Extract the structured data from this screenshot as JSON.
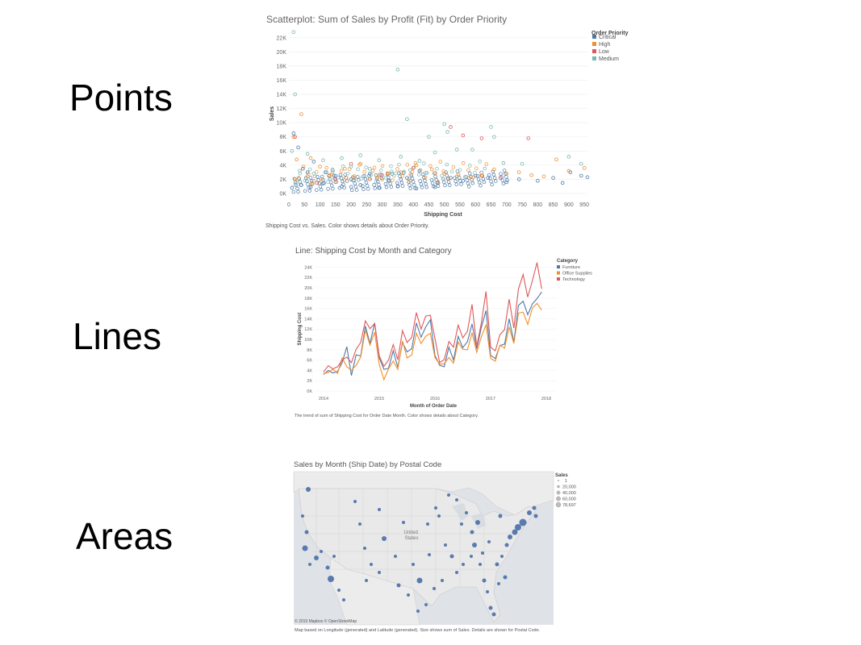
{
  "section_labels": {
    "points": "Points",
    "lines": "Lines",
    "areas": "Areas"
  },
  "colors": {
    "critical": "#4e79a7",
    "high": "#f28e2b",
    "low": "#e15759",
    "medium": "#76b7b2",
    "furniture": "#4e79a7",
    "office_supplies": "#f28e2b",
    "technology": "#e15759",
    "map_land": "#e9e9e9",
    "map_water": "#d8dde2",
    "map_points": "#4a6ea9"
  },
  "chart_data": [
    {
      "type": "scatter",
      "title": "Scatterplot: Sum of Sales by Profit (Fit) by Order Priority",
      "xlabel": "Shipping Cost",
      "ylabel": "Sales",
      "xlim": [
        0,
        960
      ],
      "ylim": [
        0,
        23000
      ],
      "x_ticks": [
        "0",
        "50",
        "100",
        "150",
        "200",
        "250",
        "300",
        "350",
        "400",
        "450",
        "500",
        "550",
        "600",
        "650",
        "700",
        "750",
        "800",
        "850",
        "900",
        "950"
      ],
      "y_ticks": [
        "0K",
        "2K",
        "4K",
        "6K",
        "8K",
        "10K",
        "12K",
        "14K",
        "16K",
        "18K",
        "20K",
        "22K"
      ],
      "legend": {
        "title": "Order Priority",
        "items": [
          "Critical",
          "High",
          "Low",
          "Medium"
        ],
        "position": "top-right"
      },
      "caption": "Shipping Cost vs. Sales.  Color shows details about Order Priority.",
      "series": [
        {
          "name": "Critical",
          "points": [
            [
              15,
              8500
            ],
            [
              30,
              6500
            ],
            [
              45,
              3500
            ],
            [
              60,
              3000
            ],
            [
              80,
              4500
            ],
            [
              120,
              3000
            ],
            [
              150,
              2500
            ],
            [
              200,
              2000
            ],
            [
              260,
              2800
            ],
            [
              320,
              1800
            ],
            [
              380,
              2200
            ],
            [
              420,
              3200
            ],
            [
              480,
              1500
            ],
            [
              520,
              2200
            ],
            [
              560,
              1800
            ],
            [
              600,
              2500
            ],
            [
              640,
              2200
            ],
            [
              700,
              1600
            ],
            [
              740,
              2000
            ],
            [
              800,
              1800
            ],
            [
              850,
              2200
            ],
            [
              880,
              1500
            ],
            [
              905,
              3000
            ],
            [
              940,
              2500
            ],
            [
              960,
              2300
            ],
            [
              10,
              800
            ],
            [
              40,
              1200
            ],
            [
              70,
              900
            ],
            [
              110,
              1400
            ],
            [
              170,
              1000
            ],
            [
              230,
              1200
            ],
            [
              290,
              800
            ],
            [
              350,
              1000
            ],
            [
              410,
              700
            ],
            [
              470,
              900
            ]
          ]
        },
        {
          "name": "High",
          "points": [
            [
              15,
              8000
            ],
            [
              40,
              11200
            ],
            [
              25,
              4800
            ],
            [
              70,
              5000
            ],
            [
              100,
              3800
            ],
            [
              140,
              3000
            ],
            [
              180,
              3500
            ],
            [
              230,
              4200
            ],
            [
              270,
              3200
            ],
            [
              320,
              2800
            ],
            [
              360,
              3000
            ],
            [
              410,
              4000
            ],
            [
              460,
              3400
            ],
            [
              500,
              2800
            ],
            [
              540,
              2400
            ],
            [
              580,
              2200
            ],
            [
              620,
              2500
            ],
            [
              660,
              3400
            ],
            [
              700,
              2800
            ],
            [
              740,
              3000
            ],
            [
              780,
              2600
            ],
            [
              820,
              2400
            ],
            [
              860,
              4800
            ],
            [
              900,
              3200
            ],
            [
              950,
              3600
            ],
            [
              20,
              2000
            ],
            [
              60,
              2400
            ],
            [
              130,
              2600
            ],
            [
              210,
              2200
            ],
            [
              300,
              2000
            ],
            [
              390,
              1800
            ],
            [
              480,
              1600
            ]
          ]
        },
        {
          "name": "Low",
          "points": [
            [
              20,
              8000
            ],
            [
              520,
              9400
            ],
            [
              560,
              8200
            ],
            [
              620,
              7800
            ],
            [
              770,
              7800
            ],
            [
              200,
              4200
            ],
            [
              400,
              3600
            ],
            [
              300,
              2600
            ],
            [
              150,
              2000
            ],
            [
              90,
              1500
            ],
            [
              680,
              2200
            ]
          ]
        },
        {
          "name": "Medium",
          "points": [
            [
              15,
              22800
            ],
            [
              20,
              14000
            ],
            [
              350,
              17500
            ],
            [
              380,
              10500
            ],
            [
              500,
              9800
            ],
            [
              510,
              8700
            ],
            [
              650,
              9400
            ],
            [
              660,
              8000
            ],
            [
              450,
              8000
            ],
            [
              10,
              6000
            ],
            [
              60,
              5600
            ],
            [
              110,
              4700
            ],
            [
              170,
              5000
            ],
            [
              230,
              5400
            ],
            [
              290,
              4700
            ],
            [
              360,
              5200
            ],
            [
              420,
              4600
            ],
            [
              470,
              5800
            ],
            [
              540,
              6200
            ],
            [
              590,
              6200
            ],
            [
              690,
              4300
            ],
            [
              750,
              4200
            ],
            [
              900,
              5200
            ],
            [
              940,
              4200
            ],
            [
              35,
              3200
            ],
            [
              80,
              2800
            ],
            [
              140,
              3400
            ],
            [
              200,
              3800
            ],
            [
              260,
              3500
            ],
            [
              330,
              3100
            ],
            [
              390,
              3300
            ],
            [
              440,
              2900
            ]
          ]
        }
      ]
    },
    {
      "type": "line",
      "title": "Line: Shipping Cost by Month and Category",
      "xlabel": "Month of Order Date",
      "ylabel": "Shipping Cost",
      "x_ticks": [
        "2014",
        "2015",
        "2016",
        "2017",
        "2018"
      ],
      "y_ticks": [
        "0K",
        "2K",
        "4K",
        "6K",
        "8K",
        "10K",
        "12K",
        "14K",
        "16K",
        "18K",
        "20K",
        "22K",
        "24K"
      ],
      "ylim": [
        0,
        25000
      ],
      "x_start": "2014-01",
      "legend": {
        "title": "Category",
        "items": [
          "Furniture",
          "Office Supplies",
          "Technology"
        ],
        "position": "top-right"
      },
      "caption": "The trend of sum of Shipping Cost for Order Date Month.  Color shows details about Category.",
      "series": [
        {
          "name": "Furniture",
          "values": [
            3200,
            4000,
            3500,
            3800,
            5500,
            8600,
            3000,
            7000,
            6800,
            12600,
            9200,
            13200,
            6400,
            4200,
            4400,
            7800,
            4600,
            9400,
            7600,
            8200,
            13200,
            10400,
            12400,
            13800,
            6900,
            5000,
            4700,
            8500,
            6000,
            10600,
            8400,
            9600,
            13000,
            8200,
            12300,
            15600,
            6900,
            6300,
            8800,
            9100,
            14000,
            9500,
            16600,
            17400,
            14800,
            16900,
            17900,
            19200
          ]
        },
        {
          "name": "Office Supplies",
          "values": [
            3400,
            3600,
            4200,
            3400,
            6400,
            4700,
            4000,
            5000,
            6600,
            11800,
            8900,
            11400,
            5100,
            2200,
            4300,
            5800,
            4200,
            9700,
            6400,
            7000,
            11200,
            9200,
            10600,
            11200,
            6500,
            5200,
            5300,
            6500,
            5400,
            9500,
            8100,
            8000,
            11300,
            7500,
            10500,
            12800,
            6300,
            5800,
            8900,
            8300,
            12400,
            9200,
            15100,
            15300,
            12900,
            16100,
            17000,
            15700
          ]
        },
        {
          "name": "Technology",
          "values": [
            3700,
            4900,
            4300,
            4700,
            6000,
            6600,
            5500,
            8100,
            9400,
            13600,
            12100,
            13100,
            6800,
            4800,
            6000,
            9000,
            6100,
            11700,
            9400,
            10400,
            15200,
            12000,
            14500,
            14700,
            10200,
            5500,
            6100,
            9600,
            8500,
            12800,
            10300,
            11600,
            16800,
            8600,
            13200,
            19300,
            8500,
            7800,
            10900,
            11900,
            17800,
            12200,
            19800,
            22600,
            18200,
            21400,
            24900,
            19800
          ]
        }
      ]
    },
    {
      "type": "map",
      "title": "Sales by Month (Ship Date) by Postal Code",
      "legend": {
        "title": "Sales",
        "items": [
          "1",
          "20,000",
          "40,000",
          "60,000",
          "78,697"
        ],
        "position": "top-right"
      },
      "country_label": "United States",
      "credit": "© 2019 Mapbox © OpenStreetMap",
      "caption": "Map based on Longitude (generated) and Latitude (generated).  Size shows sum of Sales.  Details are shown for Postal Code."
    }
  ]
}
